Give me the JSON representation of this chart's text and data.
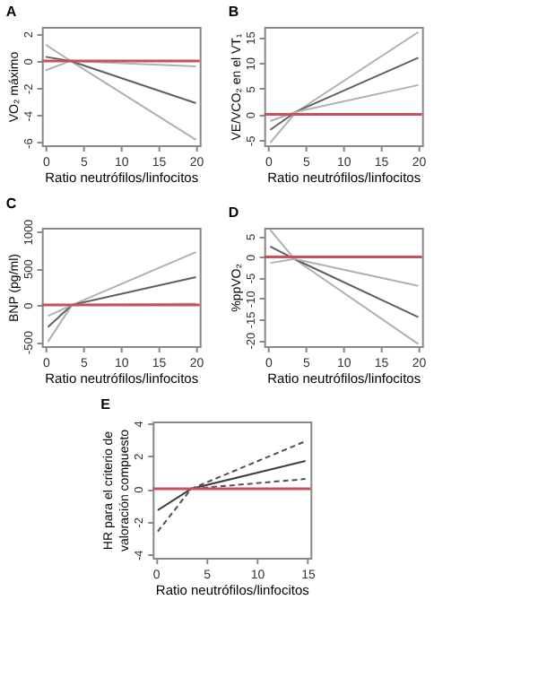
{
  "chart_data": [
    {
      "type": "line",
      "title": "A",
      "xlabel": "Ratio neutrófilos/linfocitos",
      "ylabel": "VO₂ máximo",
      "xlim": [
        -0.5,
        20.5
      ],
      "xticks": [
        0,
        5,
        10,
        15,
        20
      ],
      "ylim": [
        -6.2,
        2.5
      ],
      "yticks": [
        -6,
        -4,
        -2,
        0,
        2
      ],
      "grid": false,
      "series": [
        {
          "color": "#b0b0b0",
          "x": [
            0,
            3.3,
            20
          ],
          "values": [
            1.2,
            0,
            -5.8
          ]
        },
        {
          "color": "#606060",
          "x": [
            0,
            3.3,
            20
          ],
          "values": [
            0.3,
            0,
            -3.1
          ]
        },
        {
          "color": "#b0b0b0",
          "x": [
            0,
            3.3,
            20
          ],
          "values": [
            -0.7,
            0,
            -0.4
          ]
        }
      ],
      "ref_lines": [
        {
          "axis": "y",
          "value": 0,
          "color": "#c8505a"
        }
      ]
    },
    {
      "type": "line",
      "title": "B",
      "xlabel": "Ratio neutrófilos/linfocitos",
      "ylabel": "VE/VCO₂ en el VT₁",
      "xlim": [
        -0.5,
        20.5
      ],
      "xticks": [
        0,
        5,
        10,
        15,
        20
      ],
      "ylim": [
        -6,
        17
      ],
      "yticks": [
        -5,
        0,
        5,
        10,
        15
      ],
      "grid": false,
      "series": [
        {
          "color": "#b0b0b0",
          "x": [
            0.3,
            3.7,
            20
          ],
          "values": [
            -5.5,
            0.4,
            16
          ]
        },
        {
          "color": "#606060",
          "x": [
            0.3,
            3.7,
            20
          ],
          "values": [
            -3,
            0.5,
            11
          ]
        },
        {
          "color": "#b0b0b0",
          "x": [
            0.3,
            3.7,
            20
          ],
          "values": [
            -1.3,
            0.5,
            5.7
          ]
        }
      ],
      "ref_lines": [
        {
          "axis": "y",
          "value": 0,
          "color": "#c8505a"
        }
      ]
    },
    {
      "type": "line",
      "title": "C",
      "xlabel": "Ratio neutrófilos/linfocitos",
      "ylabel": "BNP (pg/ml)",
      "xlim": [
        -0.5,
        20.5
      ],
      "xticks": [
        0,
        5,
        10,
        15,
        20
      ],
      "ylim": [
        -560,
        1050
      ],
      "yticks": [
        -500,
        0,
        500,
        1000
      ],
      "grid": false,
      "series": [
        {
          "color": "#b0b0b0",
          "x": [
            0.3,
            3.5,
            20
          ],
          "values": [
            -500,
            0,
            720
          ]
        },
        {
          "color": "#606060",
          "x": [
            0.3,
            3.5,
            20
          ],
          "values": [
            -300,
            0,
            380
          ]
        },
        {
          "color": "#b0b0b0",
          "x": [
            0.3,
            3.5,
            20
          ],
          "values": [
            -150,
            0,
            20
          ]
        }
      ],
      "ref_lines": [
        {
          "axis": "y",
          "value": 0,
          "color": "#c8505a"
        }
      ]
    },
    {
      "type": "line",
      "title": "D",
      "xlabel": "Ratio neutrófilos/linfocitos",
      "ylabel": "%ppVO₂",
      "xlim": [
        -0.5,
        20.5
      ],
      "xticks": [
        0,
        5,
        10,
        15,
        20
      ],
      "ylim": [
        -21.5,
        7
      ],
      "yticks": [
        -20,
        -15,
        -10,
        -5,
        0,
        5
      ],
      "grid": false,
      "series": [
        {
          "color": "#b0b0b0",
          "x": [
            0.3,
            3.5,
            20
          ],
          "values": [
            6.5,
            -0.5,
            -21
          ]
        },
        {
          "color": "#606060",
          "x": [
            0.3,
            3.5,
            20
          ],
          "values": [
            2.5,
            -0.5,
            -14.5
          ]
        },
        {
          "color": "#b0b0b0",
          "x": [
            0.3,
            3.5,
            20
          ],
          "values": [
            -1.5,
            -0.5,
            -7
          ]
        }
      ],
      "ref_lines": [
        {
          "axis": "y",
          "value": 0,
          "color": "#c8505a"
        }
      ]
    },
    {
      "type": "line",
      "title": "E",
      "xlabel": "Ratio neutrófilos/linfocitos",
      "ylabel": "HR para el criterio de\nvaloración compuesto",
      "xlim": [
        -0.3,
        15.3
      ],
      "xticks": [
        0,
        5,
        10,
        15
      ],
      "ylim": [
        -4.2,
        4.1
      ],
      "yticks": [
        -4,
        -2,
        0,
        2,
        4
      ],
      "grid": false,
      "series": [
        {
          "color": "#505050",
          "line_style": "dashed",
          "x": [
            0.2,
            3.5,
            14.8
          ],
          "values": [
            -2.6,
            0,
            2.9
          ]
        },
        {
          "color": "#404040",
          "line_style": "solid",
          "x": [
            0.2,
            3.5,
            14.8
          ],
          "values": [
            -1.3,
            0,
            1.7
          ]
        },
        {
          "color": "#505050",
          "line_style": "dashed",
          "x": [
            0.2,
            3.5,
            14.8
          ],
          "values": [
            0,
            0,
            0.6
          ]
        }
      ],
      "ref_lines": [
        {
          "axis": "y",
          "value": 0,
          "color": "#c8505a"
        }
      ]
    }
  ]
}
